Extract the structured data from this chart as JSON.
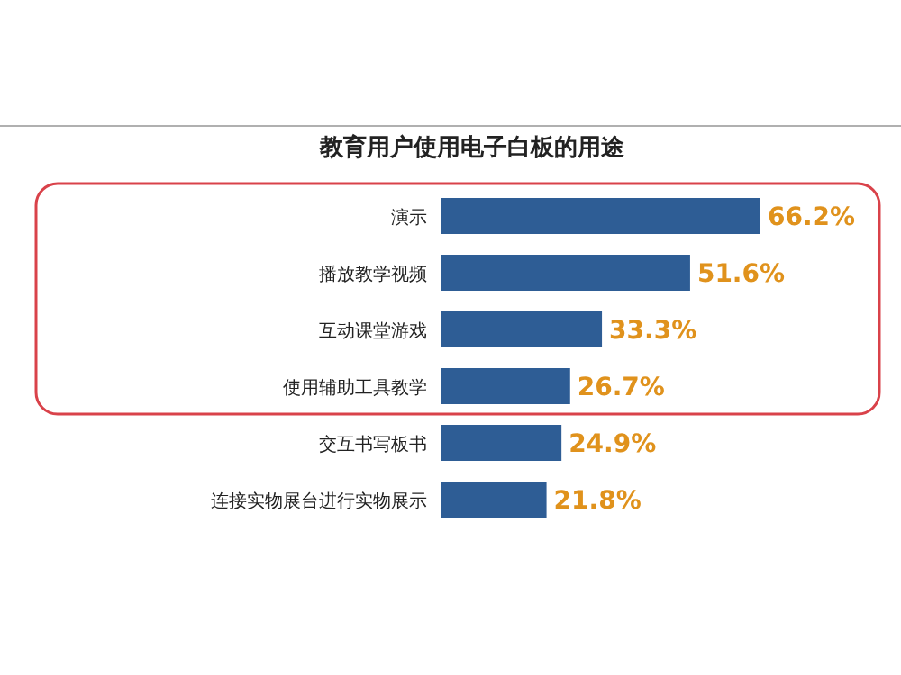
{
  "chart_data": {
    "type": "bar",
    "orientation": "horizontal",
    "title": "教育用户使用电子白板的用途",
    "categories": [
      "演示",
      "播放教学视频",
      "互动课堂游戏",
      "使用辅助工具教学",
      "交互书写板书",
      "连接实物展台进行实物展示"
    ],
    "values": [
      66.2,
      51.6,
      33.3,
      26.7,
      24.9,
      21.8
    ],
    "value_labels": [
      "66.2%",
      "51.6%",
      "33.3%",
      "26.7%",
      "24.9%",
      "21.8%"
    ],
    "color": "#2e5d95"
  }
}
